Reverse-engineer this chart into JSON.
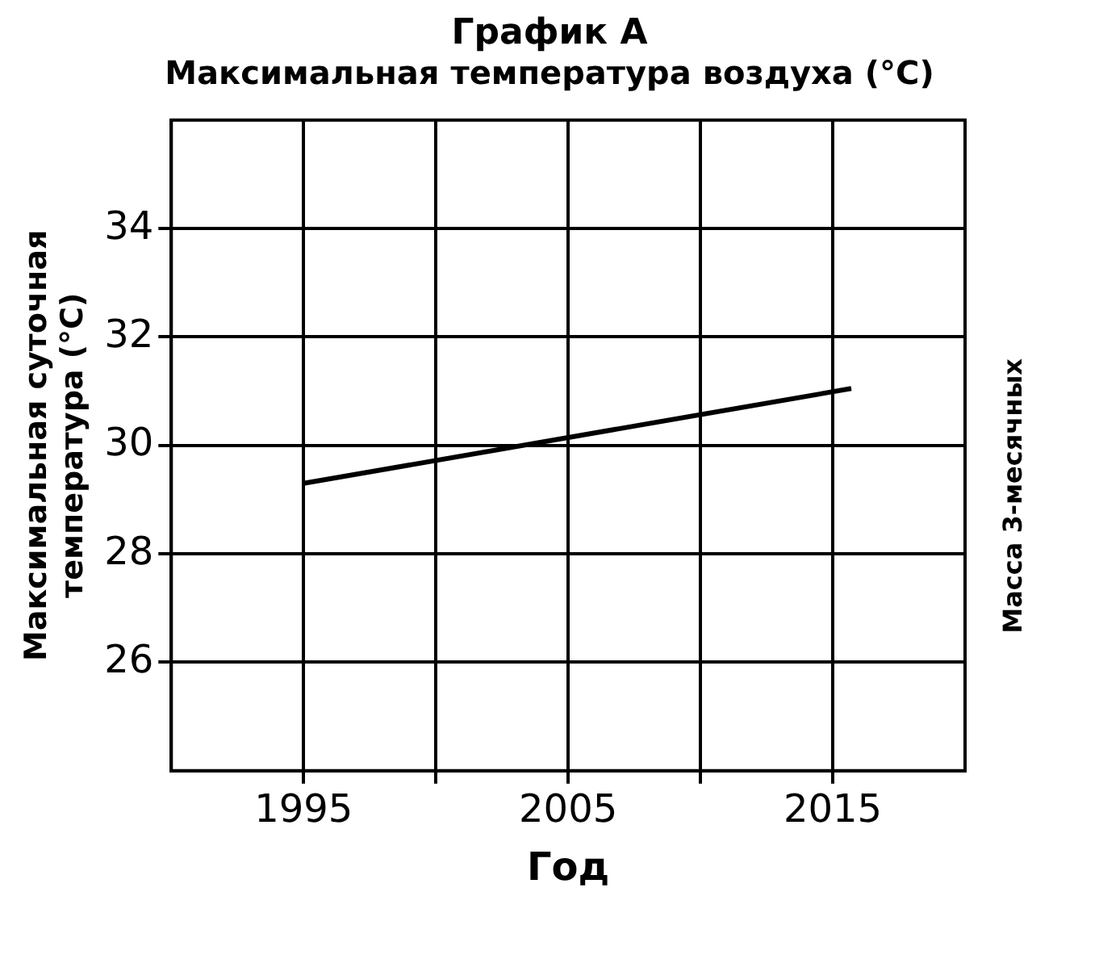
{
  "chart_data": {
    "type": "line",
    "title": "График A",
    "subtitle": "Максимальная температура воздуха (°C)",
    "xlabel": "Год",
    "ylabel": "Максимальная суточная температура (°C)",
    "x": [
      1995,
      2015.7
    ],
    "series": [
      {
        "color": "#000000",
        "values": [
          29.3,
          31.05
        ]
      }
    ],
    "xlim": [
      1990,
      2020
    ],
    "xticks": [
      1995,
      {
        "value": 2000,
        "label": null
      },
      2005,
      {
        "value": 2010,
        "label": null
      },
      2015
    ],
    "ylim": [
      24,
      36
    ],
    "yticks": [
      26,
      28,
      30,
      32,
      34
    ],
    "grid": true,
    "legend": false,
    "marker": "none",
    "line_style": "solid",
    "annotations": [
      "Масса 3-месячных"
    ]
  }
}
